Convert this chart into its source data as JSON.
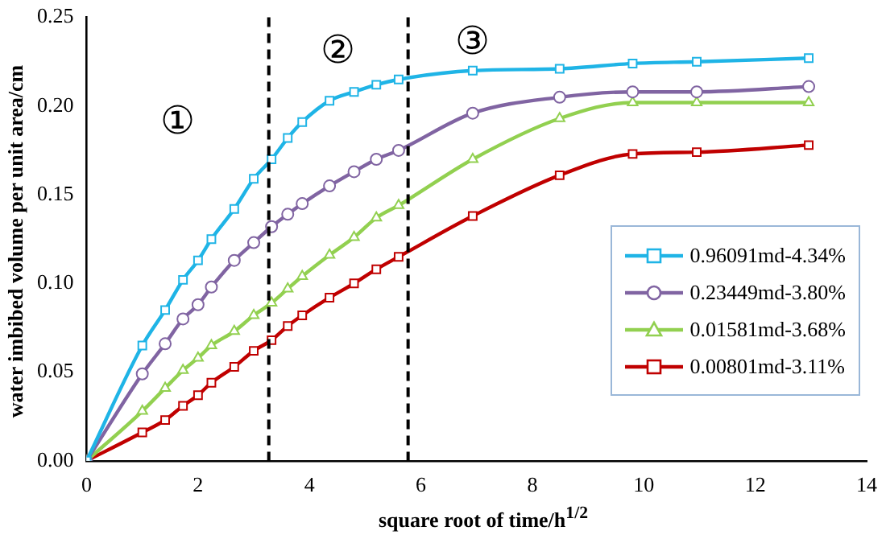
{
  "chart_data": {
    "type": "line",
    "xlabel": "square root of time/h$^{1/2}$",
    "ylabel": "water imbibed volume per unit area/cm",
    "xlim": [
      0,
      14
    ],
    "xticks": [
      0,
      2,
      4,
      6,
      8,
      10,
      12,
      14
    ],
    "ylim": [
      0,
      0.25
    ],
    "yticks": [
      {
        "value": 0,
        "label": "0.00"
      },
      {
        "value": 0.05,
        "label": "0.05"
      },
      {
        "value": 0.1,
        "label": "0.10"
      },
      {
        "value": 0.15,
        "label": "0.15"
      },
      {
        "value": 0.2,
        "label": "0.20"
      },
      {
        "value": 0.25,
        "label": "0.25"
      }
    ],
    "x": [
      0,
      1,
      1.41,
      1.73,
      2,
      2.24,
      2.65,
      3,
      3.32,
      3.61,
      3.87,
      4.36,
      4.8,
      5.2,
      5.6,
      6.93,
      8.49,
      9.8,
      10.95,
      12.96
    ],
    "grid": false,
    "legend": "right",
    "line_style": "solid",
    "series": [
      {
        "name": "0.96091md-4.34%",
        "color": "#1fb4e6",
        "marker": "square",
        "values": [
          0,
          0.065,
          0.085,
          0.102,
          0.113,
          0.125,
          0.142,
          0.159,
          0.17,
          0.182,
          0.191,
          0.203,
          0.208,
          0.212,
          0.215,
          0.22,
          0.221,
          0.224,
          0.225,
          0.227
        ]
      },
      {
        "name": "0.23449md-3.80%",
        "color": "#8064a2",
        "marker": "circle",
        "values": [
          0,
          0.049,
          0.066,
          0.08,
          0.088,
          0.098,
          0.113,
          0.123,
          0.132,
          0.139,
          0.145,
          0.155,
          0.163,
          0.17,
          0.175,
          0.196,
          0.205,
          0.208,
          0.208,
          0.211
        ]
      },
      {
        "name": "0.01581md-3.68%",
        "color": "#92d050",
        "marker": "triangle",
        "values": [
          0,
          0.028,
          0.041,
          0.051,
          0.058,
          0.065,
          0.073,
          0.082,
          0.089,
          0.097,
          0.104,
          0.116,
          0.126,
          0.137,
          0.144,
          0.17,
          0.193,
          0.202,
          0.202,
          0.202
        ]
      },
      {
        "name": "0.00801md-3.11%",
        "color": "#c00000",
        "marker": "square",
        "values": [
          0,
          0.016,
          0.023,
          0.031,
          0.037,
          0.044,
          0.053,
          0.062,
          0.068,
          0.076,
          0.082,
          0.092,
          0.1,
          0.108,
          0.115,
          0.138,
          0.161,
          0.173,
          0.174,
          0.178
        ]
      }
    ],
    "ref_lines": [
      {
        "axis": "x",
        "value": 3.27,
        "color": "#000000",
        "line_style": "dashed"
      },
      {
        "axis": "x",
        "value": 5.77,
        "color": "#000000",
        "line_style": "dashed"
      }
    ],
    "annotations": [
      "①",
      "②",
      "③"
    ]
  }
}
